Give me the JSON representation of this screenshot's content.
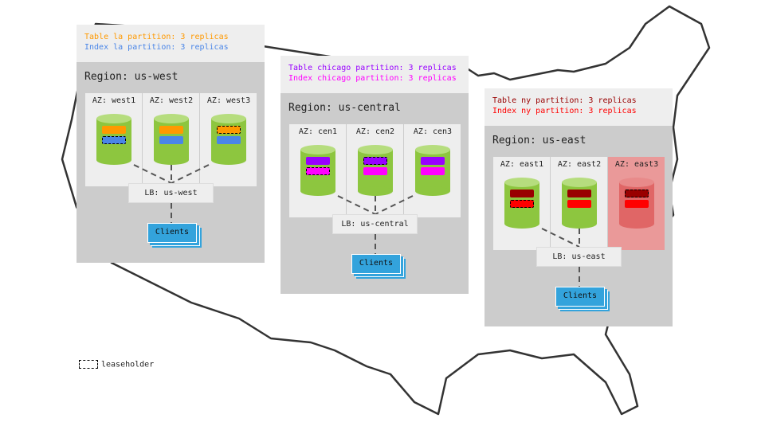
{
  "colors": {
    "table_west": "#ff9900",
    "index_west": "#4a86e8",
    "table_central": "#9900ff",
    "index_central": "#ff00ff",
    "table_east": "#990000",
    "index_east": "#ff0000",
    "node_ok": "#8dc63f",
    "node_down": "#e06666",
    "clients": "#33a3dc"
  },
  "regions": [
    {
      "partition_table": "Table la partition: 3 replicas",
      "partition_index": "Index la partition: 3 replicas",
      "title": "Region: us-west",
      "lb": "LB: us-west",
      "clients": "Clients",
      "azs": [
        {
          "label": "AZ: west1",
          "leaseholder": "index",
          "status": "up"
        },
        {
          "label": "AZ: west2",
          "leaseholder": "none",
          "status": "up"
        },
        {
          "label": "AZ: west3",
          "leaseholder": "table",
          "status": "up"
        }
      ]
    },
    {
      "partition_table": "Table chicago partition: 3 replicas",
      "partition_index": "Index chicago partition: 3 replicas",
      "title": "Region: us-central",
      "lb": "LB: us-central",
      "clients": "Clients",
      "azs": [
        {
          "label": "AZ: cen1",
          "leaseholder": "index",
          "status": "up"
        },
        {
          "label": "AZ: cen2",
          "leaseholder": "table",
          "status": "up"
        },
        {
          "label": "AZ: cen3",
          "leaseholder": "none",
          "status": "up"
        }
      ]
    },
    {
      "partition_table": "Table ny partition: 3 replicas",
      "partition_index": "Index ny partition: 3 replicas",
      "title": "Region: us-east",
      "lb": "LB: us-east",
      "clients": "Clients",
      "azs": [
        {
          "label": "AZ: east1",
          "leaseholder": "index",
          "status": "up"
        },
        {
          "label": "AZ: east2",
          "leaseholder": "none",
          "status": "up"
        },
        {
          "label": "AZ: east3",
          "leaseholder": "table",
          "status": "down"
        }
      ]
    }
  ],
  "legend": {
    "label": "leaseholder"
  }
}
